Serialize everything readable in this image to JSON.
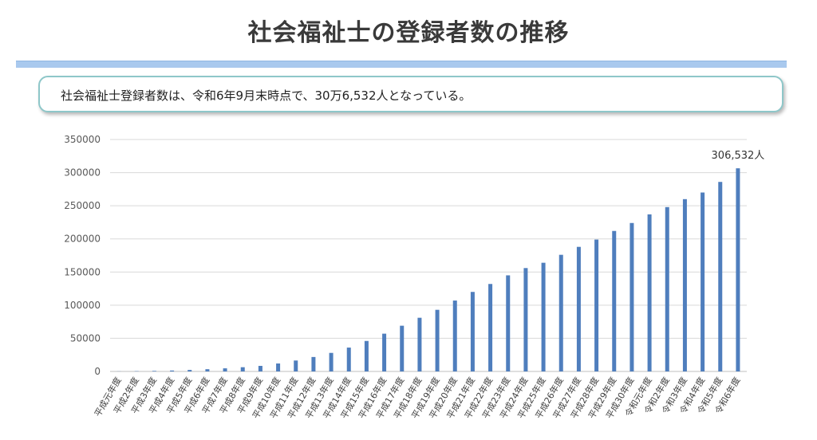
{
  "page": {
    "title": "社会福祉士の登録者数の推移",
    "summary": "社会福祉士登録者数は、令和6年9月末時点で、30万6,532人となっている。"
  },
  "colors": {
    "bar": "#4f7ebd",
    "gridline": "#d9d9d9",
    "title_rule": "#a9c9ee",
    "callout_border": "#8ec7c9"
  },
  "chart_data": {
    "type": "bar",
    "title": "",
    "xlabel": "",
    "ylabel": "",
    "ylim": [
      0,
      350000
    ],
    "yticks": [
      "350000",
      "300000",
      "250000",
      "200000",
      "150000",
      "100000",
      "50000",
      "0"
    ],
    "grid": true,
    "legend": "none",
    "categories": [
      "平成元年度",
      "平成2年度",
      "平成3年度",
      "平成4年度",
      "平成5年度",
      "平成6年度",
      "平成7年度",
      "平成8年度",
      "平成9年度",
      "平成10年度",
      "平成11年度",
      "平成12年度",
      "平成13年度",
      "平成14年度",
      "平成15年度",
      "平成16年度",
      "平成17年度",
      "平成18年度",
      "平成19年度",
      "平成20年度",
      "平成21年度",
      "平成22年度",
      "平成23年度",
      "平成24年度",
      "平成25年度",
      "平成26年度",
      "平成27年度",
      "平成28年度",
      "平成29年度",
      "平成30年度",
      "令和元年度",
      "令和2年度",
      "令和3年度",
      "令和4年度",
      "令和5年度",
      "令和6年度"
    ],
    "values": [
      180,
      450,
      850,
      1400,
      2300,
      3400,
      4700,
      6400,
      8400,
      12000,
      16500,
      21800,
      28000,
      36000,
      46000,
      57000,
      69000,
      81000,
      93000,
      107000,
      120000,
      132000,
      145000,
      156000,
      164000,
      176000,
      188000,
      199000,
      212000,
      224000,
      237000,
      248000,
      260000,
      270000,
      286000,
      306532
    ],
    "data_labels": [
      {
        "index": 35,
        "text": "306,532人"
      }
    ]
  }
}
